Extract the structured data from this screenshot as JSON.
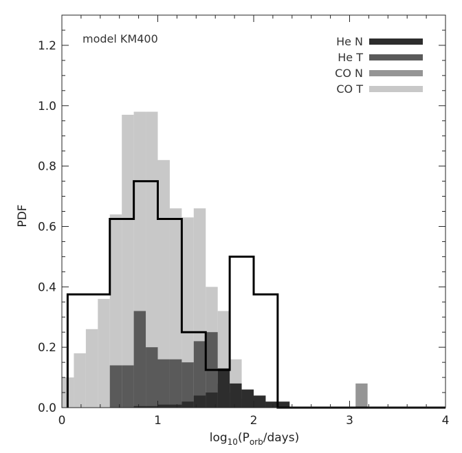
{
  "chart_data": {
    "type": "histogram",
    "title": "",
    "annotation": "model KM400",
    "xlabel": {
      "prefix": "log",
      "sub1": "10",
      "mid": "(P",
      "sub2": "orb",
      "suffix": "/days)"
    },
    "ylabel": "PDF",
    "xlim": [
      0,
      4
    ],
    "ylim": [
      0,
      1.3
    ],
    "x_ticks": [
      0,
      1,
      2,
      3,
      4
    ],
    "x_tick_labels": [
      "0",
      "1",
      "2",
      "3",
      "4"
    ],
    "y_ticks": [
      0.0,
      0.2,
      0.4,
      0.6,
      0.8,
      1.0,
      1.2
    ],
    "y_tick_labels": [
      "0.0",
      "0.2",
      "0.4",
      "0.6",
      "0.8",
      "1.0",
      "1.2"
    ],
    "grid": false,
    "legend_position": "top-right",
    "bin_width": 0.125,
    "series": [
      {
        "name": "CO T",
        "color": "#c8c8c8",
        "style": "filled",
        "bins_start": [
          0.0,
          0.125,
          0.25,
          0.375,
          0.5,
          0.625,
          0.75,
          0.875,
          1.0,
          1.125,
          1.25,
          1.375,
          1.5,
          1.625,
          1.75,
          1.875,
          2.0
        ],
        "values": [
          0.1,
          0.18,
          0.26,
          0.36,
          0.64,
          0.97,
          0.98,
          0.98,
          0.82,
          0.66,
          0.63,
          0.66,
          0.4,
          0.32,
          0.16,
          0.06,
          0.04
        ]
      },
      {
        "name": "CO N",
        "color": "#959595",
        "style": "filled",
        "bins_start": [
          3.0625
        ],
        "values": [
          0.08
        ]
      },
      {
        "name": "He T",
        "color": "#5a5a5a",
        "style": "filled",
        "bins_start": [
          0.5,
          0.625,
          0.75,
          0.875,
          1.0,
          1.125,
          1.25,
          1.375,
          1.5,
          1.625,
          1.75,
          1.875,
          2.0
        ],
        "values": [
          0.14,
          0.14,
          0.32,
          0.2,
          0.16,
          0.16,
          0.15,
          0.22,
          0.25,
          0.08,
          0.05,
          0.03,
          0.02
        ]
      },
      {
        "name": "He N",
        "color": "#2d2d2d",
        "style": "filled",
        "bins_start": [
          0.75,
          0.875,
          1.0,
          1.125,
          1.25,
          1.375,
          1.5,
          1.625,
          1.75,
          1.875,
          2.0,
          2.125,
          2.25
        ],
        "values": [
          0.005,
          0.005,
          0.01,
          0.01,
          0.02,
          0.04,
          0.05,
          0.13,
          0.08,
          0.06,
          0.04,
          0.02,
          0.02
        ]
      },
      {
        "name": "",
        "color": "#000000",
        "style": "outline",
        "edges": [
          0.06,
          0.5,
          0.75,
          1.0,
          1.25,
          1.5,
          1.625,
          1.75,
          2.0,
          2.25,
          4.0
        ],
        "values": [
          0.375,
          0.625,
          0.75,
          0.625,
          0.25,
          0.125,
          0.125,
          0.5,
          0.375,
          0.0
        ]
      }
    ]
  }
}
